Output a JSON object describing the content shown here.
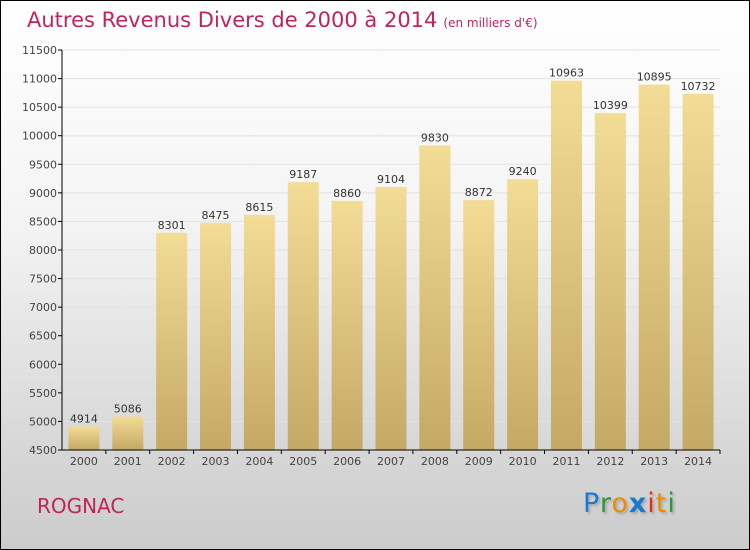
{
  "chart_data": {
    "type": "bar",
    "title": "Autres Revenus Divers de 2000 à 2014",
    "subtitle": "(en milliers d'€)",
    "categories": [
      "2000",
      "2001",
      "2002",
      "2003",
      "2004",
      "2005",
      "2006",
      "2007",
      "2008",
      "2009",
      "2010",
      "2011",
      "2012",
      "2013",
      "2014"
    ],
    "values": [
      4914,
      5086,
      8301,
      8475,
      8615,
      9187,
      8860,
      9104,
      9830,
      8872,
      9240,
      10963,
      10399,
      10895,
      10732
    ],
    "ylim": [
      4500,
      11500
    ],
    "yticks": [
      4500,
      5000,
      5500,
      6000,
      6500,
      7000,
      7500,
      8000,
      8500,
      9000,
      9500,
      10000,
      10500,
      11000,
      11500
    ],
    "xlabel": "",
    "ylabel": "",
    "bar_color": "#e8cf86"
  },
  "footer": {
    "city": "ROGNAC",
    "logo": "Proxiti"
  }
}
